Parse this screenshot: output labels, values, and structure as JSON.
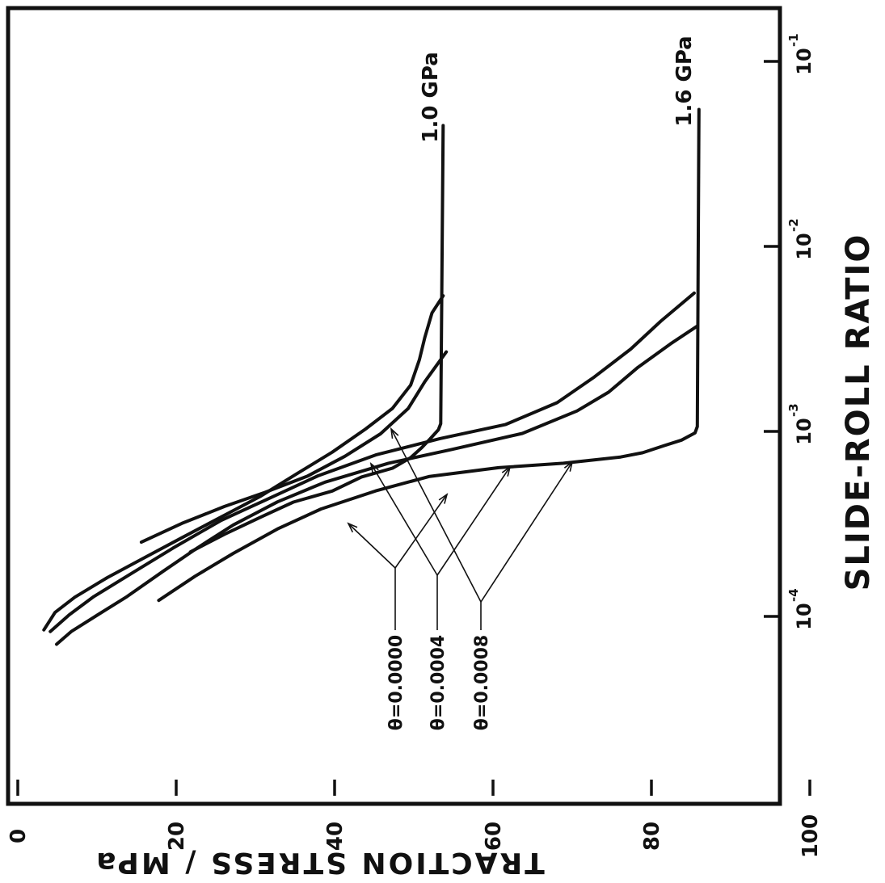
{
  "chart_data": {
    "type": "line",
    "orientation": "rotated 90° counter-clockwise (x axis runs bottom to top, y axis runs left to right)",
    "xlabel": "SLIDE-ROLL RATIO",
    "ylabel": "TRACTION   STRESS / MPa",
    "xscale": "log",
    "xlim": [
      1e-05,
      0.15
    ],
    "ylim": [
      0,
      105
    ],
    "x_ticks": [
      {
        "value": 0.0001,
        "base": "10",
        "exp": "-4"
      },
      {
        "value": 0.001,
        "base": "10",
        "exp": "-3"
      },
      {
        "value": 0.01,
        "base": "10",
        "exp": "-2"
      },
      {
        "value": 0.1,
        "base": "10",
        "exp": "-1"
      }
    ],
    "y_ticks": [
      {
        "value": 0,
        "label": "0"
      },
      {
        "value": 20,
        "label": "20"
      },
      {
        "value": 40,
        "label": "40"
      },
      {
        "value": 60,
        "label": "60"
      },
      {
        "value": 80,
        "label": "80"
      },
      {
        "value": 100,
        "label": "100"
      }
    ],
    "grid": false,
    "pressure_labels": [
      {
        "text": "1.6 GPa",
        "x": 0.055,
        "y": 86
      },
      {
        "text": "1.0 GPa",
        "x": 0.045,
        "y": 54
      }
    ],
    "legend": [
      {
        "text": "θ=0.0000",
        "x": 8e-05,
        "y": 51
      },
      {
        "text": "θ=0.0004",
        "x": 8e-05,
        "y": 46
      },
      {
        "text": "θ=0.0008",
        "x": 8e-05,
        "y": 40
      }
    ],
    "series": [
      {
        "pressure": "1.6 GPa",
        "theta": "0.0000",
        "x": [
          0.000122,
          0.000165,
          0.000219,
          0.000297,
          0.000381,
          0.000477,
          0.00057,
          0.000637,
          0.000673,
          0.000727,
          0.000767,
          0.000838,
          0.000897,
          0.000981,
          0.001062,
          0.001072,
          0.055
        ],
        "y": [
          17.8,
          22.4,
          27.2,
          32.8,
          38.3,
          45.2,
          51.9,
          60.7,
          68.9,
          76.1,
          78.9,
          81.6,
          83.8,
          85.5,
          85.8,
          85.8,
          86.0
        ]
      },
      {
        "pressure": "1.6 GPa",
        "theta": "0.0004",
        "x": [
          7.07e-05,
          8.31e-05,
          0.000102,
          0.000128,
          0.000176,
          0.000235,
          0.000312,
          0.000416,
          0.000532,
          0.000673,
          0.000797,
          0.000975,
          0.00129,
          0.00163,
          0.00222,
          0.00297,
          0.00371
        ],
        "y": [
          4.9,
          6.8,
          10.1,
          13.8,
          18.4,
          22.7,
          27.2,
          32.8,
          38.8,
          46.8,
          54.7,
          63.7,
          70.6,
          74.6,
          78.3,
          82.4,
          85.8
        ]
      },
      {
        "pressure": "1.6 GPa",
        "theta": "0.0008",
        "x": [
          8.29e-05,
          0.000102,
          0.000128,
          0.000171,
          0.000234,
          0.000331,
          0.000424,
          0.000575,
          0.000746,
          0.000914,
          0.00109,
          0.00143,
          0.00197,
          0.00279,
          0.00395,
          0.00559
        ],
        "y": [
          4.1,
          6.5,
          9.6,
          14.4,
          19.6,
          25.7,
          31.2,
          37.9,
          45.2,
          53.3,
          61.6,
          68.1,
          72.8,
          77.4,
          81.2,
          85.4
        ]
      },
      {
        "pressure": "1.0 GPa",
        "theta": "0.0000",
        "x": [
          0.000223,
          0.000278,
          0.000343,
          0.000415,
          0.000476,
          0.000567,
          0.000632,
          0.000721,
          0.000817,
          0.000905,
          0.00102,
          0.0011,
          0.045
        ],
        "y": [
          21.8,
          26.1,
          30.6,
          34.8,
          39.7,
          43.4,
          47.3,
          49.6,
          51.0,
          52.0,
          53.1,
          53.4,
          53.7
        ]
      },
      {
        "pressure": "1.0 GPa",
        "theta": "0.0004",
        "x": [
          0.000252,
          0.000318,
          0.000393,
          0.000468,
          0.000574,
          0.000734,
          0.00097,
          0.00133,
          0.00186,
          0.00269
        ],
        "y": [
          15.6,
          20.7,
          26.1,
          31.2,
          36.6,
          41.3,
          45.8,
          49.3,
          51.4,
          54.1
        ]
      },
      {
        "pressure": "1.0 GPa",
        "theta": "0.0008",
        "x": [
          8.45e-05,
          0.000105,
          0.000127,
          0.000162,
          0.000209,
          0.000266,
          0.000345,
          0.000445,
          0.000589,
          0.000772,
          0.00103,
          0.00133,
          0.00178,
          0.00244,
          0.00323,
          0.00437,
          0.00541
        ],
        "y": [
          3.3,
          4.7,
          7.2,
          11.3,
          16.1,
          20.7,
          25.7,
          30.6,
          35.2,
          39.7,
          43.9,
          47.3,
          49.6,
          50.7,
          51.4,
          52.3,
          53.7
        ]
      }
    ]
  }
}
